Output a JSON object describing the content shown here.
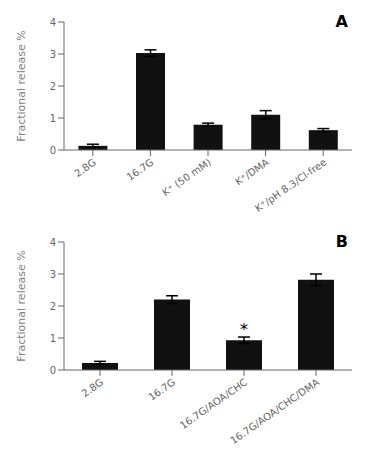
{
  "chart_data": [
    {
      "type": "bar",
      "categories": [
        "2.8G",
        "16.7G",
        "K⁺ (50 mM)",
        "K⁺/DMA",
        "K⁺/pH 8.3/Cl-free"
      ],
      "values": [
        0.13,
        3.03,
        0.79,
        1.1,
        0.62
      ],
      "errors": [
        0.05,
        0.1,
        0.05,
        0.13,
        0.05
      ],
      "ylim": [
        0,
        4
      ],
      "yticks": [
        0,
        1,
        2,
        3,
        4
      ],
      "ylabel": "Fractional release %",
      "color": "#111111",
      "grid": false,
      "annotations": [
        {
          "text": "A"
        }
      ]
    },
    {
      "type": "bar",
      "categories": [
        "2.8G",
        "16.7G",
        "16.7G/AOA/CHC",
        "16.7G/AOA/CHC/DMA"
      ],
      "values": [
        0.22,
        2.2,
        0.93,
        2.82
      ],
      "errors": [
        0.05,
        0.12,
        0.1,
        0.18
      ],
      "ylim": [
        0,
        4
      ],
      "yticks": [
        0,
        1,
        2,
        3,
        4
      ],
      "ylabel": "Fractional release %",
      "color": "#111111",
      "grid": false,
      "annotations": [
        {
          "text": "B"
        },
        {
          "text": "*",
          "category": "16.7G/AOA/CHC"
        }
      ]
    }
  ]
}
